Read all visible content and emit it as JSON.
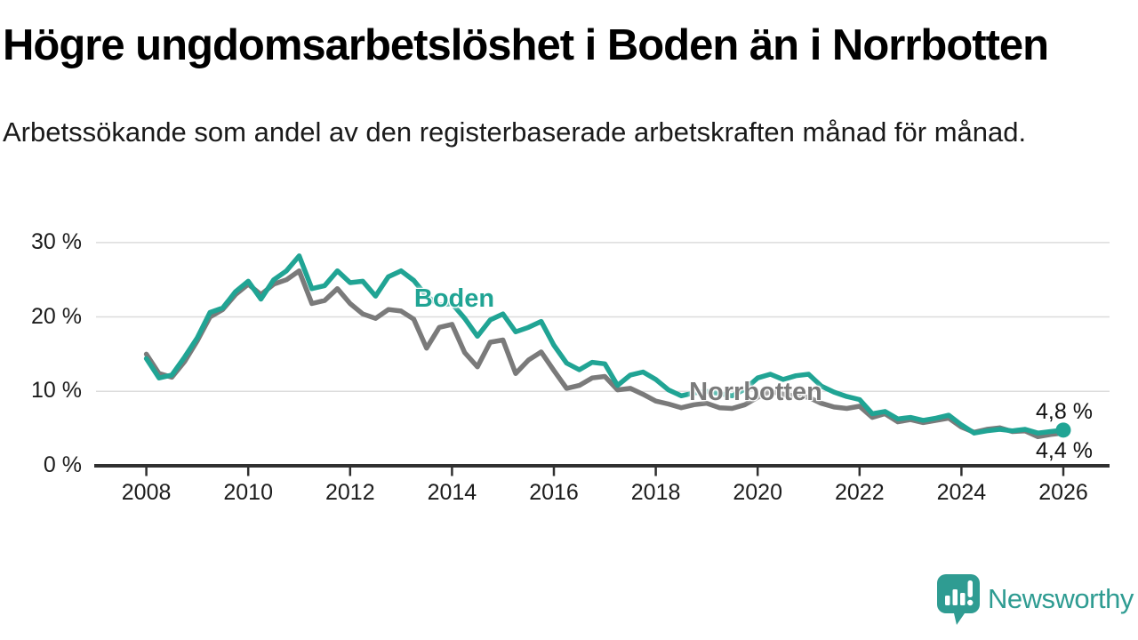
{
  "header": {
    "title": "Högre ungdomsarbetslöshet i Boden än i Norrbotten",
    "subtitle": "Arbetssökande som andel av den registerbaserade arbetskraften månad för månad."
  },
  "chart_data": {
    "type": "line",
    "title": "Högre ungdomsarbetslöshet i Boden än i Norrbotten",
    "subtitle": "Arbetssökande som andel av den registerbaserade arbetskraften månad för månad.",
    "unit": "%",
    "grid": true,
    "legend_position": "inline-labels",
    "style": {
      "grid_color": "#dcdcdc",
      "axis_color": "#303030",
      "background": "#ffffff"
    },
    "y_axis": {
      "ticks": [
        0,
        10,
        20,
        30
      ],
      "labels": [
        "0 %",
        "10 %",
        "20 %",
        "30 %"
      ],
      "range": [
        0,
        31.5
      ]
    },
    "x_axis": {
      "ticks": [
        2008,
        2010,
        2012,
        2014,
        2016,
        2018,
        2020,
        2022,
        2024,
        2026
      ],
      "labels": [
        "2008",
        "2010",
        "2012",
        "2014",
        "2016",
        "2018",
        "2020",
        "2022",
        "2024",
        "2026"
      ],
      "range": [
        2007.0,
        2026.9
      ]
    },
    "x": [
      2008,
      2008.25,
      2008.5,
      2008.75,
      2009,
      2009.25,
      2009.5,
      2009.75,
      2010,
      2010.25,
      2010.5,
      2010.75,
      2011,
      2011.25,
      2011.5,
      2011.75,
      2012,
      2012.25,
      2012.5,
      2012.75,
      2013,
      2013.25,
      2013.5,
      2013.75,
      2014,
      2014.25,
      2014.5,
      2014.75,
      2015,
      2015.25,
      2015.5,
      2015.75,
      2016,
      2016.25,
      2016.5,
      2016.75,
      2017,
      2017.25,
      2017.5,
      2017.75,
      2018,
      2018.25,
      2018.5,
      2018.75,
      2019,
      2019.25,
      2019.5,
      2019.75,
      2020,
      2020.25,
      2020.5,
      2020.75,
      2021,
      2021.25,
      2021.5,
      2021.75,
      2022,
      2022.25,
      2022.5,
      2022.75,
      2023,
      2023.25,
      2023.5,
      2023.75,
      2024,
      2024.25,
      2024.5,
      2024.75,
      2025,
      2025.25,
      2025.5,
      2025.75,
      2026
    ],
    "series": [
      {
        "name": "Norrbotten",
        "color": "#7a7a7a",
        "end_label": "4,4 %",
        "end_dot": false,
        "values": [
          15.0,
          12.4,
          11.9,
          14.0,
          16.8,
          20.0,
          21.0,
          23.0,
          24.4,
          23.0,
          24.4,
          25.0,
          26.2,
          21.8,
          22.2,
          23.8,
          21.8,
          20.4,
          19.8,
          21.0,
          20.8,
          19.7,
          15.8,
          18.6,
          19.0,
          15.2,
          13.3,
          16.6,
          16.9,
          12.4,
          14.2,
          15.3,
          12.8,
          10.4,
          10.8,
          11.8,
          12.0,
          10.2,
          10.4,
          9.6,
          8.7,
          8.3,
          7.8,
          8.2,
          8.4,
          7.8,
          7.7,
          8.2,
          9.2,
          10.0,
          9.6,
          9.4,
          9.2,
          8.4,
          7.9,
          7.7,
          8.0,
          6.5,
          7.0,
          5.9,
          6.2,
          5.8,
          6.1,
          6.4,
          5.2,
          4.5,
          4.9,
          5.1,
          4.6,
          4.7,
          3.9,
          4.2,
          4.4
        ]
      },
      {
        "name": "Boden",
        "color": "#20a494",
        "end_label": "4,8 %",
        "end_dot": true,
        "values": [
          14.4,
          11.8,
          12.2,
          14.6,
          17.2,
          20.6,
          21.2,
          23.4,
          24.8,
          22.4,
          25.0,
          26.2,
          28.2,
          23.8,
          24.2,
          26.2,
          24.6,
          24.8,
          22.8,
          25.4,
          26.2,
          24.9,
          22.8,
          21.6,
          21.8,
          19.8,
          17.4,
          19.6,
          20.4,
          18.0,
          18.6,
          19.4,
          16.2,
          13.8,
          12.9,
          13.9,
          13.7,
          10.8,
          12.2,
          12.6,
          11.6,
          10.2,
          9.4,
          9.8,
          10.0,
          9.7,
          9.4,
          10.3,
          11.8,
          12.3,
          11.6,
          12.1,
          12.3,
          10.7,
          9.9,
          9.3,
          8.9,
          7.0,
          7.3,
          6.3,
          6.5,
          6.1,
          6.4,
          6.8,
          5.5,
          4.4,
          4.7,
          4.9,
          4.7,
          4.9,
          4.4,
          4.6,
          4.8
        ]
      }
    ]
  },
  "footer": {
    "brand": "Newsworthy",
    "brand_color": "#2f9c92"
  }
}
